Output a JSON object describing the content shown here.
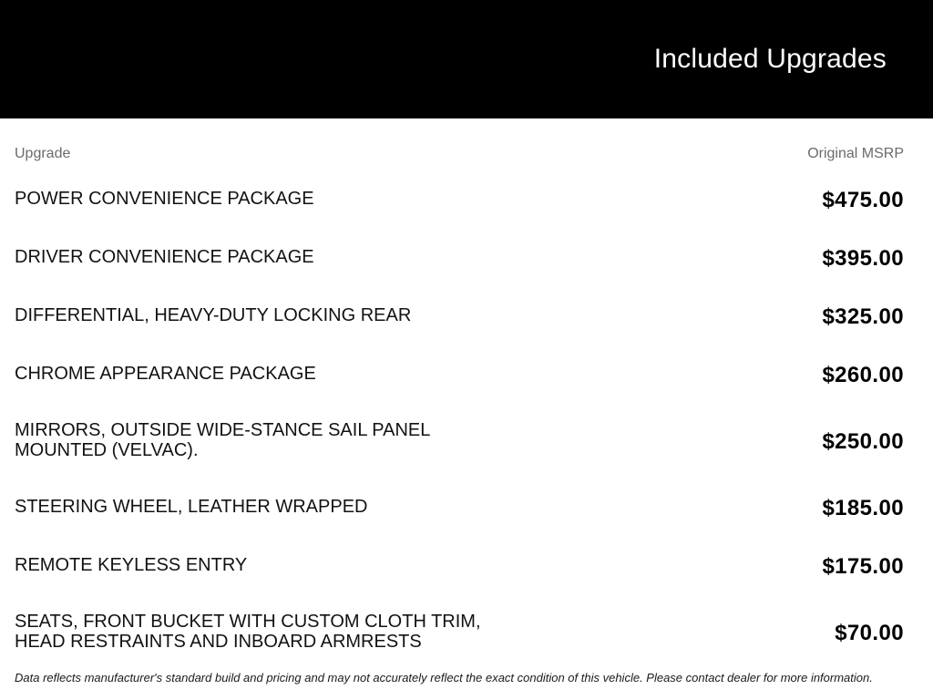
{
  "header": {
    "title": "Included Upgrades"
  },
  "table": {
    "columns": {
      "upgrade": "Upgrade",
      "msrp": "Original MSRP"
    },
    "rows": [
      {
        "name": "POWER CONVENIENCE PACKAGE",
        "price": "$475.00"
      },
      {
        "name": "DRIVER CONVENIENCE PACKAGE",
        "price": "$395.00"
      },
      {
        "name": "DIFFERENTIAL, HEAVY-DUTY LOCKING REAR",
        "price": "$325.00"
      },
      {
        "name": "CHROME APPEARANCE PACKAGE",
        "price": "$260.00"
      },
      {
        "name": "MIRRORS, OUTSIDE WIDE-STANCE SAIL PANEL MOUNTED (VELVAC).",
        "price": "$250.00"
      },
      {
        "name": "STEERING WHEEL, LEATHER WRAPPED",
        "price": "$185.00"
      },
      {
        "name": "REMOTE KEYLESS ENTRY",
        "price": "$175.00"
      },
      {
        "name": "SEATS, FRONT BUCKET WITH CUSTOM CLOTH TRIM, HEAD RESTRAINTS AND INBOARD ARMRESTS",
        "price": "$70.00"
      }
    ]
  },
  "footer": {
    "disclaimer": "Data reflects manufacturer's standard build and pricing and may not accurately reflect the exact condition of this vehicle. Please contact dealer for more information."
  },
  "colors": {
    "header_bg": "#000000",
    "header_text": "#ffffff",
    "column_header_text": "#6b6b6b",
    "row_text": "#121212",
    "price_text": "#000000"
  }
}
